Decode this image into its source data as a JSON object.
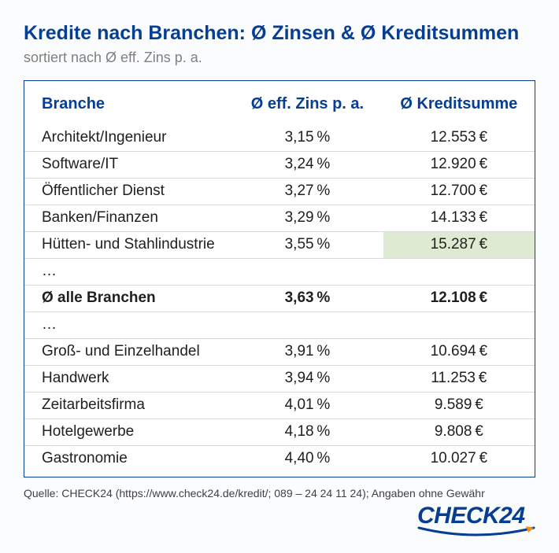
{
  "title": "Kredite nach Branchen: Ø Zinsen & Ø Kreditsummen",
  "subtitle": "sortiert nach Ø eff. Zins p. a.",
  "columns": {
    "branch": "Branche",
    "zins": "Ø eff. Zins p. a.",
    "sum": "Ø Kreditsumme"
  },
  "rows": [
    {
      "branch": "Architekt/Ingenieur",
      "zins": "3,15 %",
      "sum": "12.553 €"
    },
    {
      "branch": "Software/IT",
      "zins": "3,24 %",
      "sum": "12.920 €"
    },
    {
      "branch": "Öffentlicher Dienst",
      "zins": "3,27 %",
      "sum": "12.700 €"
    },
    {
      "branch": "Banken/Finanzen",
      "zins": "3,29 %",
      "sum": "14.133 €"
    },
    {
      "branch": "Hütten- und Stahlindustrie",
      "zins": "3,55 %",
      "sum": "15.287 €",
      "hl_sum": true
    },
    {
      "ellipsis": "…"
    },
    {
      "branch": "Ø alle Branchen",
      "zins": "3,63 %",
      "sum": "12.108 €",
      "avg": true
    },
    {
      "ellipsis": "…"
    },
    {
      "branch": "Groß- und Einzelhandel",
      "zins": "3,91 %",
      "sum": "10.694 €"
    },
    {
      "branch": "Handwerk",
      "zins": "3,94 %",
      "sum": "11.253 €"
    },
    {
      "branch": "Zeitarbeitsfirma",
      "zins": "4,01 %",
      "sum": "9.589 €"
    },
    {
      "branch": "Hotelgewerbe",
      "zins": "4,18 %",
      "sum": "9.808 €"
    },
    {
      "branch": "Gastronomie",
      "zins": "4,40 %",
      "sum": "10.027 €",
      "last": true
    }
  ],
  "source": "Quelle: CHECK24 (https://www.check24.de/kredit/; 089 – 24 24 11 24); Angaben ohne Gewähr",
  "logo_text": "CHECK24",
  "colors": {
    "brand": "#063e93",
    "highlight": "#dfead2",
    "row_border": "#d9d9d9",
    "swoosh": "#ff8a00"
  }
}
